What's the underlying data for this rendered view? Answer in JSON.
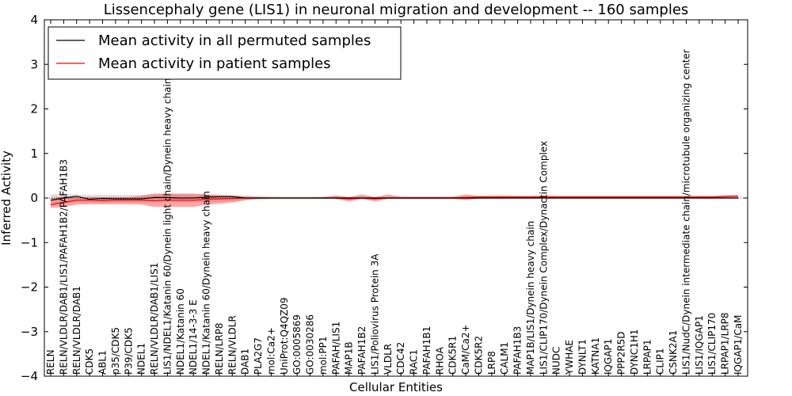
{
  "chart_data": {
    "type": "line",
    "title": "Lissencephaly gene (LIS1) in neuronal migration and development -- 160 samples",
    "xlabel": "Cellular Entities",
    "ylabel": "Inferred Activity",
    "ylim": [
      -4,
      4
    ],
    "yticks": [
      -4,
      -3,
      -2,
      -1,
      0,
      1,
      2,
      3,
      4
    ],
    "ytick_labels": [
      "−4",
      "−3",
      "−2",
      "−1",
      "0",
      "1",
      "2",
      "3",
      "4"
    ],
    "grid": false,
    "legend_position": "top-left",
    "categories": [
      "RELN",
      "RELN/VLDLR/DAB1/LIS1/PAFAH1B2/PAFAH1B3",
      "RELN/VLDLR/DAB1",
      "CDK5",
      "ABL1",
      "p35/CDK5",
      "P39/CDK5",
      "NDEL1",
      "RELN/VLDLR/DAB1/LIS1",
      "LIS1/NDEL1/Katanin 60/Dynein light chain/Dynein heavy chain",
      "NDEL1/Katanin 60",
      "NDEL1/14-3-3 E",
      "NDEL1/Katanin 60/Dynein heavy chain",
      "RELN/LRP8",
      "RELN/VLDLR",
      "DAB1",
      "PLA2G7",
      "mol:Ca2+",
      "UniProt:Q4QZ09",
      "GO:0005869",
      "GO:0030286",
      "mol:PP1",
      "PAFAH/LIS1",
      "MAP1B",
      "PAFAH1B2",
      "LIS1/Poliovirus Protein 3A",
      "VLDLR",
      "CDC42",
      "RAC1",
      "PAFAH1B1",
      "RHOA",
      "CDK5R1",
      "CaM/Ca2+",
      "CDK5R2",
      "LRP8",
      "CALM1",
      "PAFAH1B3",
      "MAP1B/LIS1/Dynein heavy chain",
      "LIS1/CLIP170/Dynein Complex/Dynactin Complex",
      "NUDC",
      "YWHAE",
      "DYNLT1",
      "KATNA1",
      "IQGAP1",
      "PPP2R5D",
      "DYNC1H1",
      "LRPAP1",
      "CLIP1",
      "CSNK2A1",
      "LIS1/NudC/Dynein intermediate chain/microtubule organizing center",
      "LIS1/IQGAP1",
      "LIS1/CLIP170",
      "LRPAP1/LRP8",
      "IQGAP1/CaM"
    ],
    "series": [
      {
        "name": "Mean activity in all permuted samples",
        "color": "#000000",
        "values": [
          -0.05,
          0.0,
          0.04,
          -0.03,
          -0.01,
          -0.02,
          -0.02,
          -0.02,
          0.01,
          0.01,
          0.0,
          0.0,
          0.02,
          0.03,
          0.03,
          0.0,
          0.0,
          0.0,
          0.0,
          0.0,
          0.0,
          0.0,
          0.0,
          0.0,
          0.0,
          0.0,
          0.0,
          0.0,
          0.0,
          0.0,
          0.0,
          0.0,
          0.0,
          0.0,
          0.0,
          0.0,
          0.0,
          0.0,
          0.0,
          0.0,
          0.0,
          0.0,
          0.0,
          0.0,
          0.0,
          0.0,
          0.0,
          0.0,
          0.0,
          0.0,
          0.0,
          0.0,
          0.0,
          0.0
        ],
        "band_lower": [
          -0.1,
          -0.12,
          -0.1,
          -0.1,
          -0.1,
          -0.1,
          -0.1,
          -0.1,
          -0.1,
          -0.1,
          -0.1,
          -0.1,
          -0.09,
          -0.08,
          -0.07,
          -0.05,
          -0.04,
          -0.03,
          -0.03,
          -0.03,
          -0.03,
          -0.03,
          -0.03,
          -0.03,
          -0.03,
          -0.03,
          -0.03,
          -0.03,
          -0.03,
          -0.03,
          -0.03,
          -0.03,
          -0.03,
          -0.03,
          -0.03,
          -0.03,
          -0.03,
          -0.03,
          -0.03,
          -0.03,
          -0.03,
          -0.03,
          -0.03,
          -0.03,
          -0.03,
          -0.03,
          -0.03,
          -0.03,
          -0.03,
          -0.03,
          -0.03,
          -0.03,
          -0.03,
          -0.03
        ],
        "band_upper": [
          0.08,
          0.1,
          0.08,
          0.07,
          0.07,
          0.07,
          0.07,
          0.07,
          0.08,
          0.08,
          0.08,
          0.08,
          0.08,
          0.08,
          0.07,
          0.06,
          0.05,
          0.04,
          0.03,
          0.03,
          0.03,
          0.03,
          0.03,
          0.03,
          0.03,
          0.03,
          0.03,
          0.03,
          0.03,
          0.03,
          0.03,
          0.03,
          0.03,
          0.03,
          0.03,
          0.03,
          0.03,
          0.03,
          0.03,
          0.03,
          0.03,
          0.03,
          0.03,
          0.03,
          0.03,
          0.03,
          0.03,
          0.03,
          0.03,
          0.03,
          0.03,
          0.03,
          0.03,
          0.03
        ]
      },
      {
        "name": "Mean activity in patient samples",
        "color": "#ff0000",
        "values": [
          -0.15,
          -0.1,
          -0.05,
          -0.05,
          -0.06,
          -0.05,
          -0.05,
          -0.05,
          -0.06,
          -0.05,
          -0.05,
          -0.05,
          -0.03,
          -0.02,
          -0.01,
          0.0,
          0.0,
          0.0,
          0.0,
          0.0,
          0.0,
          0.0,
          0.0,
          -0.02,
          0.0,
          -0.02,
          0.0,
          0.0,
          0.0,
          0.0,
          0.0,
          0.0,
          0.01,
          0.02,
          0.02,
          0.02,
          0.02,
          0.02,
          0.02,
          0.02,
          0.02,
          0.02,
          0.02,
          0.02,
          0.02,
          0.02,
          0.02,
          0.02,
          0.02,
          0.02,
          0.02,
          0.02,
          0.03,
          0.04
        ],
        "band_lower": [
          -0.22,
          -0.2,
          -0.15,
          -0.14,
          -0.14,
          -0.14,
          -0.14,
          -0.15,
          -0.2,
          -0.2,
          -0.2,
          -0.2,
          -0.15,
          -0.13,
          -0.1,
          -0.05,
          -0.02,
          -0.01,
          0.0,
          0.0,
          0.0,
          -0.01,
          -0.02,
          -0.08,
          -0.02,
          -0.08,
          -0.02,
          -0.02,
          -0.02,
          -0.02,
          -0.02,
          -0.02,
          -0.05,
          -0.01,
          -0.01,
          -0.01,
          0.0,
          0.0,
          0.0,
          0.0,
          0.0,
          0.0,
          0.0,
          0.0,
          0.0,
          0.0,
          0.0,
          0.0,
          0.0,
          0.0,
          0.0,
          0.0,
          0.01,
          0.02
        ],
        "band_upper": [
          0.0,
          0.03,
          0.02,
          0.02,
          0.02,
          0.02,
          0.02,
          0.05,
          0.1,
          0.1,
          0.1,
          0.1,
          0.08,
          0.06,
          0.05,
          0.03,
          0.02,
          0.01,
          0.01,
          0.01,
          0.01,
          0.02,
          0.06,
          0.02,
          0.08,
          0.02,
          0.08,
          0.03,
          0.03,
          0.03,
          0.03,
          0.03,
          0.08,
          0.05,
          0.06,
          0.06,
          0.05,
          0.05,
          0.06,
          0.05,
          0.05,
          0.05,
          0.05,
          0.05,
          0.05,
          0.05,
          0.05,
          0.05,
          0.05,
          0.05,
          0.05,
          0.05,
          0.07,
          0.07
        ]
      }
    ]
  }
}
